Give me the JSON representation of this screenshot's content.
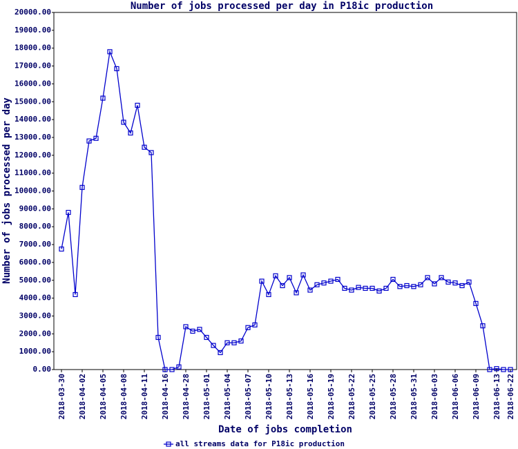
{
  "chart_data": {
    "type": "line",
    "title": "Number of jobs processed per day in P18ic production",
    "x_label": "Date of jobs completion",
    "y_label": "Number of jobs processed per day",
    "categories": [
      "2018-03-30",
      null,
      null,
      "2018-04-02",
      null,
      null,
      "2018-04-05",
      null,
      null,
      "2018-04-08",
      null,
      null,
      "2018-04-11",
      null,
      null,
      "2018-04-16",
      null,
      null,
      "2018-04-28",
      null,
      null,
      "2018-05-01",
      null,
      null,
      "2018-05-04",
      null,
      null,
      "2018-05-07",
      null,
      null,
      "2018-05-10",
      null,
      null,
      "2018-05-13",
      null,
      null,
      "2018-05-16",
      null,
      null,
      "2018-05-19",
      null,
      null,
      "2018-05-22",
      null,
      null,
      "2018-05-25",
      null,
      null,
      "2018-05-28",
      null,
      null,
      "2018-05-31",
      null,
      null,
      "2018-06-03",
      null,
      null,
      "2018-06-06",
      null,
      null,
      "2018-06-09",
      null,
      null,
      "2018-06-13",
      null,
      "2018-06-22"
    ],
    "series": [
      {
        "name": "all streams data for P18ic production",
        "color": "#0000cc",
        "values": [
          6750,
          8800,
          4200,
          10200,
          12800,
          12950,
          15200,
          17800,
          16850,
          13850,
          13250,
          14800,
          12450,
          12150,
          1800,
          0,
          0,
          150,
          2400,
          2150,
          2250,
          1800,
          1350,
          950,
          1500,
          1500,
          1600,
          2350,
          2500,
          4950,
          4200,
          5250,
          4700,
          5150,
          4300,
          5300,
          4450,
          4750,
          4850,
          4950,
          5050,
          4550,
          4450,
          4600,
          4550,
          4550,
          4400,
          4550,
          5050,
          4650,
          4700,
          4650,
          4750,
          5150,
          4800,
          5150,
          4900,
          4850,
          4700,
          4900,
          3700,
          2450,
          0,
          50,
          0,
          0
        ]
      }
    ],
    "ylim": [
      0,
      20000
    ],
    "yticks": [
      {
        "value": 0,
        "label": "0.00"
      },
      {
        "value": 1000,
        "label": "1000.00"
      },
      {
        "value": 2000,
        "label": "2000.00"
      },
      {
        "value": 3000,
        "label": "3000.00"
      },
      {
        "value": 4000,
        "label": "4000.00"
      },
      {
        "value": 5000,
        "label": "5000.00"
      },
      {
        "value": 6000,
        "label": "6000.00"
      },
      {
        "value": 7000,
        "label": "7000.00"
      },
      {
        "value": 8000,
        "label": "8000.00"
      },
      {
        "value": 9000,
        "label": "9000.00"
      },
      {
        "value": 10000,
        "label": "10000.00"
      },
      {
        "value": 11000,
        "label": "11000.00"
      },
      {
        "value": 12000,
        "label": "12000.00"
      },
      {
        "value": 13000,
        "label": "13000.00"
      },
      {
        "value": 14000,
        "label": "14000.00"
      },
      {
        "value": 15000,
        "label": "15000.00"
      },
      {
        "value": 16000,
        "label": "16000.00"
      },
      {
        "value": 17000,
        "label": "17000.00"
      },
      {
        "value": 18000,
        "label": "18000.00"
      },
      {
        "value": 19000,
        "label": "19000.00"
      },
      {
        "value": 20000,
        "label": "20000.00"
      }
    ],
    "grid": false
  }
}
